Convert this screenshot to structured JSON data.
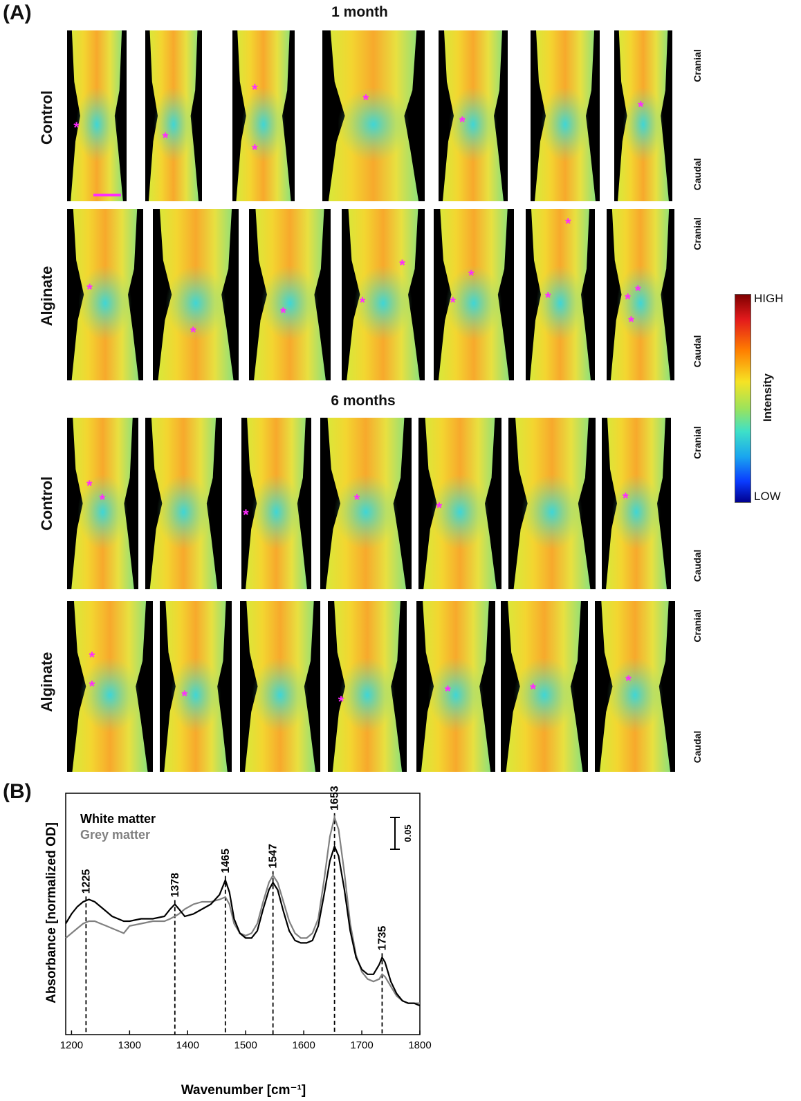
{
  "panel_a": {
    "label": "(A)",
    "section_1_title": "1 month",
    "section_2_title": "6 months",
    "row_labels": [
      "Control",
      "Alginate",
      "Control",
      "Alginate"
    ],
    "cranial_label": "Cranial",
    "caudal_label": "Caudal",
    "marker_symbol": "*",
    "marker_color": "#ff2bff",
    "scalebar_color": "#ff2bff",
    "colorbar": {
      "title": "Intensity",
      "high": "HIGH",
      "low": "LOW",
      "colors": [
        "#7f0000",
        "#e31a1c",
        "#ff7f00",
        "#f6e324",
        "#9be35c",
        "#3ee0c8",
        "#1aa6ef",
        "#0a3bff",
        "#00008f"
      ]
    }
  },
  "panel_b": {
    "label": "(B)"
  },
  "chart_data": {
    "type": "line",
    "xlabel": "Wavenumber [cm⁻¹]",
    "ylabel": "Absorbance [normalized OD]",
    "xlim": [
      1190,
      1800
    ],
    "xticks": [
      1200,
      1300,
      1400,
      1500,
      1600,
      1700,
      1800
    ],
    "ylim": [
      0,
      1
    ],
    "scale_bar_label": "0.05",
    "peak_labels": [
      {
        "x": 1225,
        "label": "1225"
      },
      {
        "x": 1378,
        "label": "1378"
      },
      {
        "x": 1465,
        "label": "1465"
      },
      {
        "x": 1547,
        "label": "1547"
      },
      {
        "x": 1653,
        "label": "1653"
      },
      {
        "x": 1735,
        "label": "1735"
      }
    ],
    "series": [
      {
        "name": "White matter",
        "color": "#000000",
        "x": [
          1190,
          1200,
          1210,
          1220,
          1230,
          1240,
          1250,
          1260,
          1270,
          1280,
          1290,
          1300,
          1320,
          1340,
          1360,
          1370,
          1378,
          1385,
          1395,
          1410,
          1425,
          1440,
          1455,
          1465,
          1472,
          1480,
          1490,
          1500,
          1510,
          1520,
          1530,
          1540,
          1547,
          1555,
          1565,
          1575,
          1585,
          1595,
          1605,
          1615,
          1625,
          1635,
          1645,
          1653,
          1660,
          1670,
          1680,
          1690,
          1700,
          1710,
          1720,
          1730,
          1735,
          1740,
          1750,
          1760,
          1770,
          1780,
          1790,
          1800
        ],
        "y": [
          0.46,
          0.5,
          0.53,
          0.55,
          0.56,
          0.55,
          0.53,
          0.51,
          0.49,
          0.48,
          0.47,
          0.47,
          0.48,
          0.48,
          0.49,
          0.52,
          0.54,
          0.52,
          0.49,
          0.5,
          0.52,
          0.54,
          0.58,
          0.64,
          0.59,
          0.48,
          0.42,
          0.4,
          0.4,
          0.43,
          0.52,
          0.6,
          0.63,
          0.6,
          0.51,
          0.43,
          0.39,
          0.38,
          0.38,
          0.39,
          0.45,
          0.58,
          0.72,
          0.78,
          0.74,
          0.6,
          0.43,
          0.32,
          0.27,
          0.25,
          0.25,
          0.29,
          0.32,
          0.3,
          0.22,
          0.17,
          0.14,
          0.13,
          0.13,
          0.12
        ]
      },
      {
        "name": "Grey matter",
        "color": "#808080",
        "x": [
          1190,
          1200,
          1210,
          1220,
          1230,
          1240,
          1250,
          1260,
          1270,
          1280,
          1290,
          1300,
          1320,
          1340,
          1360,
          1370,
          1378,
          1385,
          1395,
          1410,
          1425,
          1440,
          1455,
          1465,
          1472,
          1480,
          1490,
          1500,
          1510,
          1520,
          1530,
          1540,
          1547,
          1555,
          1565,
          1575,
          1585,
          1595,
          1605,
          1615,
          1625,
          1635,
          1645,
          1653,
          1660,
          1670,
          1680,
          1690,
          1700,
          1710,
          1720,
          1730,
          1735,
          1740,
          1750,
          1760,
          1770,
          1780,
          1790,
          1800
        ],
        "y": [
          0.4,
          0.42,
          0.44,
          0.46,
          0.47,
          0.47,
          0.46,
          0.45,
          0.44,
          0.43,
          0.42,
          0.45,
          0.46,
          0.47,
          0.47,
          0.48,
          0.49,
          0.5,
          0.52,
          0.54,
          0.55,
          0.55,
          0.56,
          0.57,
          0.54,
          0.46,
          0.42,
          0.41,
          0.42,
          0.46,
          0.55,
          0.63,
          0.66,
          0.63,
          0.55,
          0.47,
          0.42,
          0.4,
          0.4,
          0.42,
          0.48,
          0.64,
          0.82,
          0.9,
          0.85,
          0.67,
          0.46,
          0.33,
          0.26,
          0.23,
          0.22,
          0.23,
          0.25,
          0.24,
          0.2,
          0.16,
          0.14,
          0.13,
          0.13,
          0.13
        ]
      }
    ]
  }
}
